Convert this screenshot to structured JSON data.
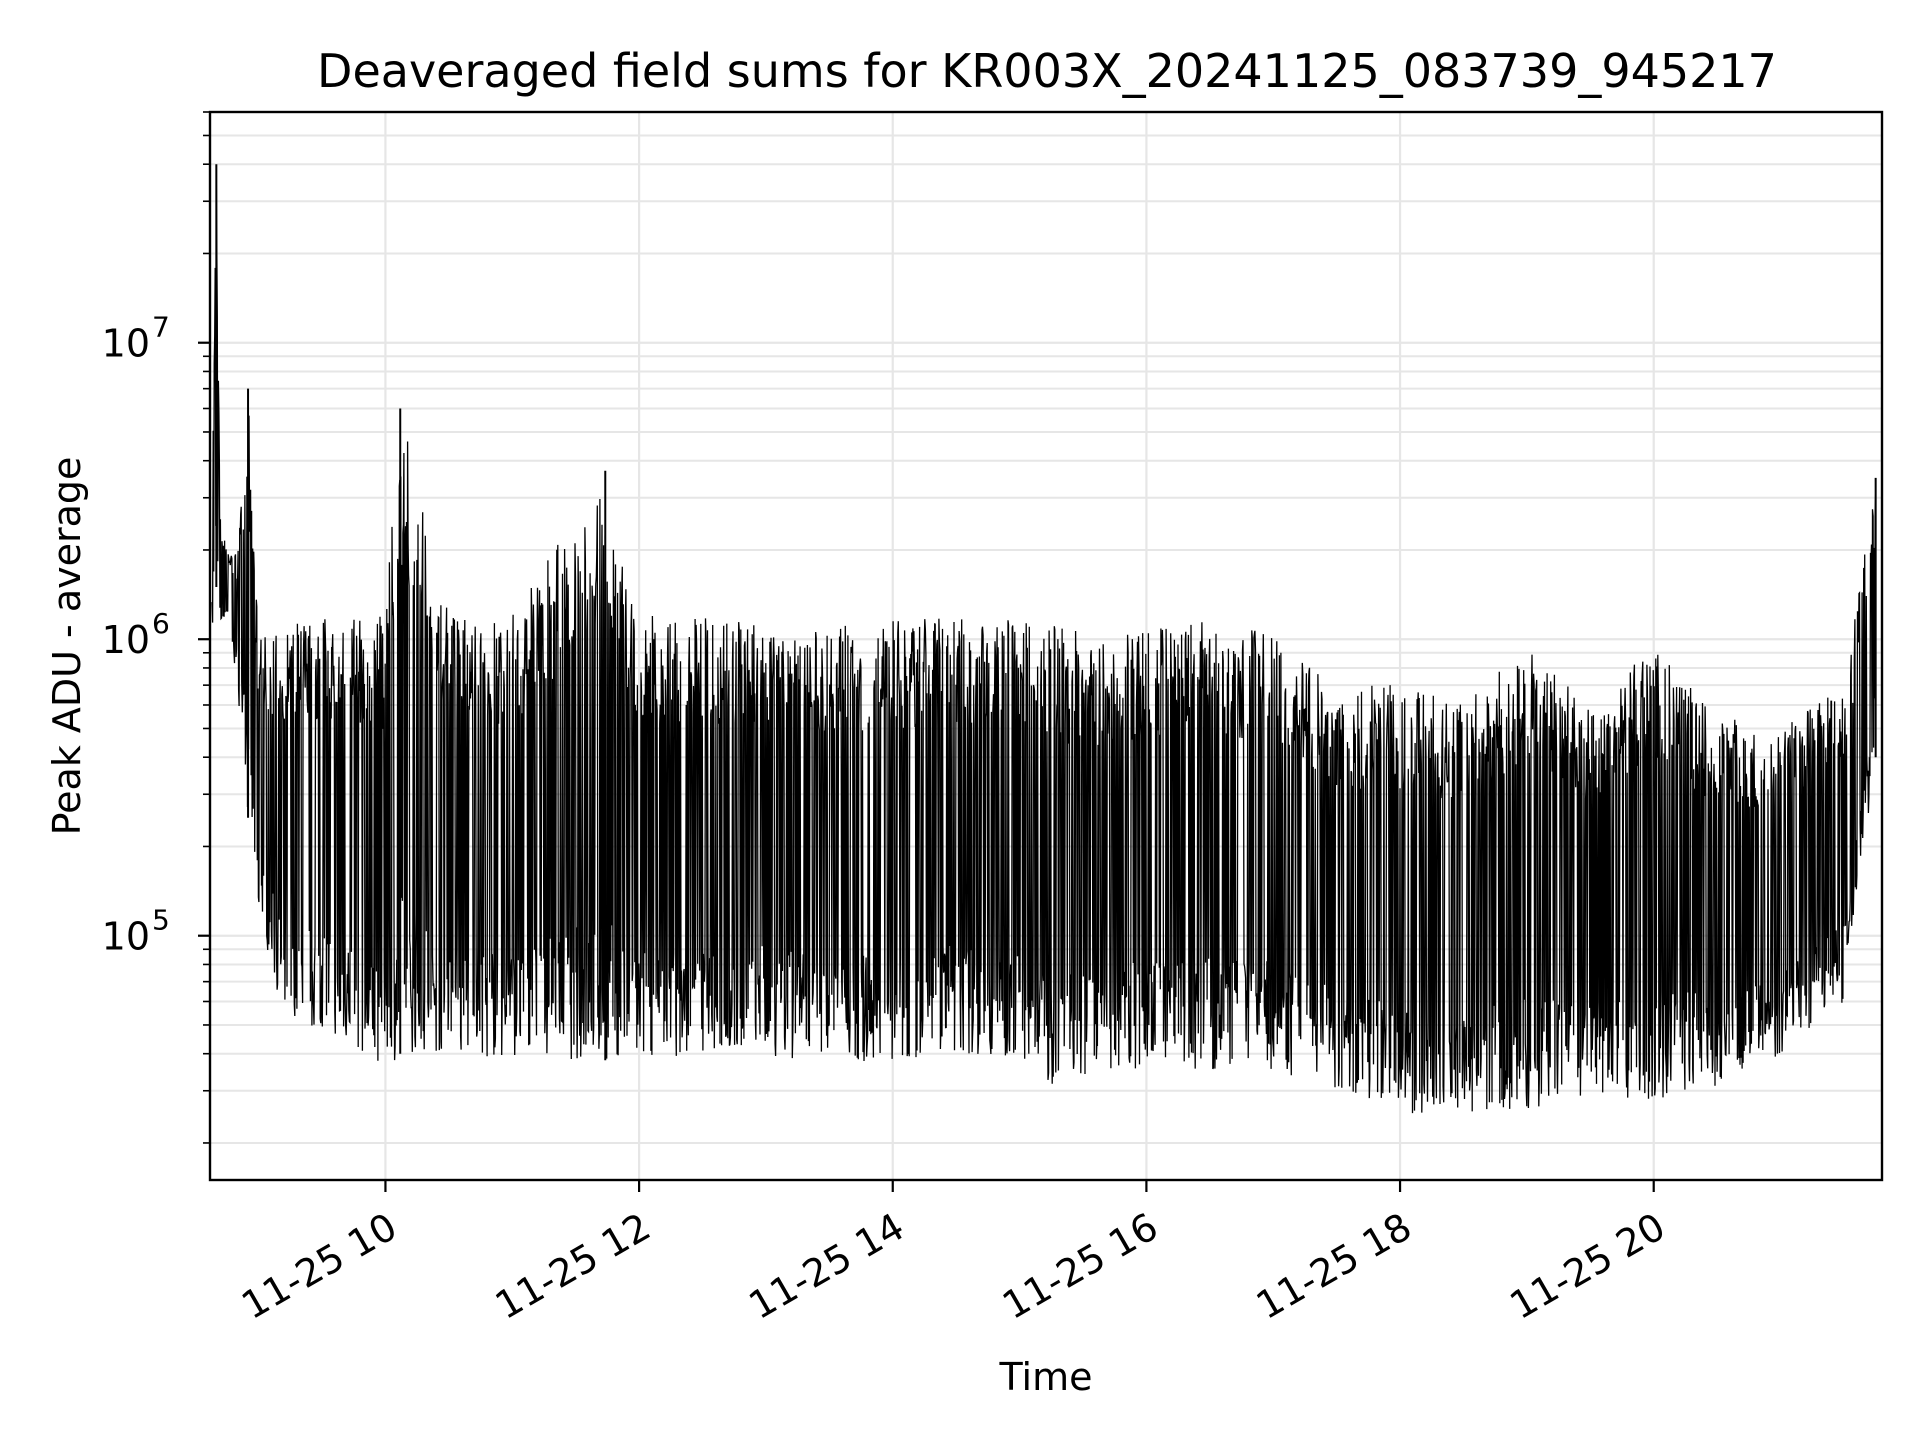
{
  "chart_data": {
    "type": "line",
    "title": "Deaveraged field sums for KR003X_20241125_083739_945217",
    "xlabel": "Time",
    "ylabel": "Peak ADU - average",
    "xlim": [
      "2024-11-25 08:37",
      "2024-11-25 21:48"
    ],
    "ylim": [
      15000,
      60000000
    ],
    "yscale": "log",
    "grid": true,
    "line_color": "#000000",
    "x_ticks": [
      "11-25 10",
      "11-25 12",
      "11-25 14",
      "11-25 16",
      "11-25 18",
      "11-25 20"
    ],
    "y_ticks": [
      {
        "value": 100000,
        "base": "10",
        "exp": "5"
      },
      {
        "value": 1000000,
        "base": "10",
        "exp": "6"
      },
      {
        "value": 10000000,
        "base": "10",
        "exp": "7"
      }
    ],
    "series": [
      {
        "x": [
          "2024-11-25 08:38",
          "2024-11-25 08:40",
          "2024-11-25 08:42",
          "2024-11-25 08:45",
          "2024-11-25 08:50",
          "2024-11-25 08:55",
          "2024-11-25 09:00",
          "2024-11-25 09:10",
          "2024-11-25 09:20",
          "2024-11-25 09:40",
          "2024-11-25 10:00",
          "2024-11-25 10:07",
          "2024-11-25 10:30",
          "2024-11-25 11:00",
          "2024-11-25 11:44",
          "2024-11-25 12:00",
          "2024-11-25 12:30",
          "2024-11-25 13:00",
          "2024-11-25 13:30",
          "2024-11-25 14:00",
          "2024-11-25 14:30",
          "2024-11-25 15:00",
          "2024-11-25 15:20",
          "2024-11-25 15:40",
          "2024-11-25 16:00",
          "2024-11-25 16:30",
          "2024-11-25 17:00",
          "2024-11-25 17:30",
          "2024-11-25 18:00",
          "2024-11-25 18:30",
          "2024-11-25 19:00",
          "2024-11-25 19:30",
          "2024-11-25 20:00",
          "2024-11-25 20:30",
          "2024-11-25 21:00",
          "2024-11-25 21:30",
          "2024-11-25 21:45"
        ],
        "high": [
          3500000,
          40000000,
          2500000,
          2000000,
          2000000,
          7000000,
          1000000,
          1100000,
          1150000,
          1200000,
          1200000,
          6000000,
          1200000,
          1200000,
          3700000,
          1200000,
          1200000,
          1150000,
          1100000,
          1150000,
          1200000,
          1150000,
          1100000,
          1000000,
          1100000,
          1150000,
          1050000,
          700000,
          700000,
          600000,
          950000,
          600000,
          950000,
          550000,
          500000,
          700000,
          3500000
        ],
        "low": [
          1000000,
          1500000,
          1100000,
          1200000,
          700000,
          250000,
          120000,
          60000,
          50000,
          45000,
          35000,
          40000,
          40000,
          38000,
          38000,
          38000,
          40000,
          40000,
          35000,
          38000,
          40000,
          38000,
          30000,
          35000,
          35000,
          35000,
          35000,
          30000,
          25000,
          25000,
          25000,
          28000,
          28000,
          30000,
          40000,
          60000,
          400000
        ]
      }
    ]
  }
}
